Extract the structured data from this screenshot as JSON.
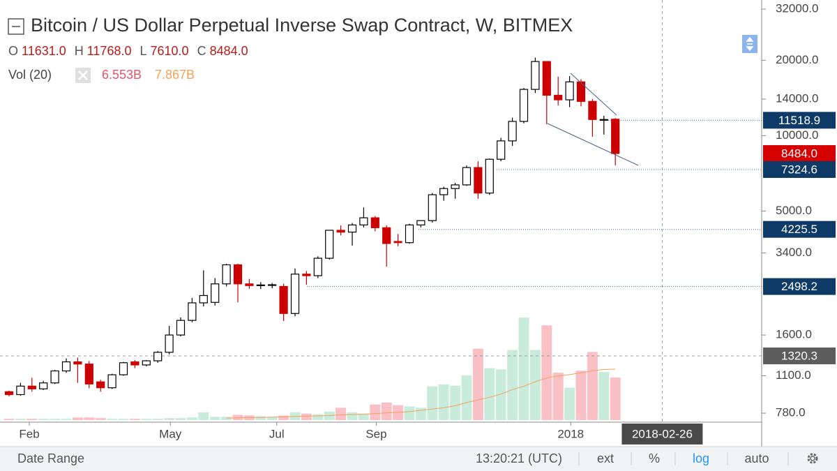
{
  "chart_data": {
    "type": "candlestick",
    "title": "Bitcoin / US Dollar Perpetual Inverse Swap Contract, W, BITMEX",
    "ohlc_legend": [
      {
        "key": "O",
        "value": "11631.0"
      },
      {
        "key": "H",
        "value": "11768.0"
      },
      {
        "key": "L",
        "value": "7610.0"
      },
      {
        "key": "C",
        "value": "8484.0"
      }
    ],
    "volume_legend": {
      "name": "Vol (20)",
      "value": "6.553B",
      "ma": "7.867B"
    },
    "log_scale": true,
    "ylim": [
      718,
      34800
    ],
    "yticks": [
      {
        "value": 32000,
        "label": "32000.0"
      },
      {
        "value": 20000,
        "label": "20000.0"
      },
      {
        "value": 14000,
        "label": "14000.0"
      },
      {
        "value": 10000,
        "label": "10000.0"
      },
      {
        "value": 5000,
        "label": "5000.0"
      },
      {
        "value": 3400,
        "label": "3400.0"
      },
      {
        "value": 1600,
        "label": "1600.0"
      },
      {
        "value": 1100,
        "label": "1100.0"
      },
      {
        "value": 780,
        "label": "780.0"
      }
    ],
    "xticks": [
      {
        "value": 1.77,
        "label": "Feb"
      },
      {
        "value": 14.1,
        "label": "May"
      },
      {
        "value": 23.4,
        "label": "Jul"
      },
      {
        "value": 32.1,
        "label": "Sep"
      },
      {
        "value": 49.1,
        "label": "2018"
      }
    ],
    "crosshair": {
      "x": {
        "value": 57.1,
        "label": "2018-02-26"
      },
      "y": 1320.3
    },
    "levels": [
      {
        "value": 11518.9,
        "color": "#0d3a66"
      },
      {
        "value": 8484,
        "label": "8484.0",
        "color": "#d50000"
      },
      {
        "value": 7324.6,
        "color": "#0d3a66"
      },
      {
        "value": 4225.5,
        "color": "#0d3a66"
      },
      {
        "value": 2498.2,
        "color": "#0d3a66"
      }
    ],
    "up_color": "#ffffff",
    "down_color": "#cc0000",
    "up_volume_color": "#c8ebdb",
    "down_volume_color": "#f9c0c6",
    "ma_color": "#f0a25a",
    "vol_lim": [
      0,
      30
    ],
    "candles": {
      "open": [
        950,
        925,
        1000,
        975,
        1030,
        1150,
        1250,
        1225,
        1040,
        985,
        1110,
        1250,
        1215,
        1262,
        1365,
        1600,
        1830,
        2150,
        2160,
        2560,
        3050,
        2560,
        2530,
        2525,
        2500,
        1950,
        2800,
        2760,
        3240,
        4190,
        4120,
        4400,
        4700,
        4290,
        3780,
        3740,
        4400,
        4580,
        5810,
        6150,
        6360,
        7460,
        5900,
        8050,
        9530,
        11400,
        15300,
        19770,
        14500,
        13900,
        16400,
        13700,
        11520,
        11631
      ],
      "high": [
        960,
        1030,
        1080,
        1050,
        1160,
        1290,
        1300,
        1260,
        1060,
        1120,
        1250,
        1270,
        1270,
        1380,
        1740,
        1880,
        2250,
        2900,
        2700,
        3080,
        3080,
        2680,
        2600,
        2580,
        2560,
        2950,
        2880,
        3300,
        4200,
        4380,
        4480,
        5170,
        4780,
        4380,
        4050,
        4450,
        4600,
        5900,
        6250,
        6480,
        7600,
        7900,
        8100,
        9800,
        11800,
        15500,
        20500,
        19800,
        17200,
        17300,
        16800,
        14000,
        12000,
        11768
      ],
      "low": [
        910,
        915,
        950,
        965,
        1020,
        1130,
        1030,
        980,
        950,
        975,
        1100,
        1180,
        1200,
        1240,
        1340,
        1580,
        1800,
        2080,
        2100,
        2500,
        2160,
        2450,
        2440,
        2460,
        1820,
        1900,
        2540,
        2700,
        3200,
        4000,
        3640,
        4300,
        4150,
        3000,
        3620,
        3700,
        4300,
        4500,
        5500,
        5600,
        6300,
        5600,
        5800,
        7900,
        9100,
        11200,
        14800,
        11100,
        13200,
        13000,
        13100,
        9900,
        10100,
        7610
      ],
      "close": [
        925,
        1000,
        975,
        1030,
        1150,
        1250,
        1225,
        1020,
        985,
        1110,
        1240,
        1215,
        1262,
        1365,
        1600,
        1830,
        2150,
        2300,
        2560,
        3050,
        2560,
        2520,
        2535,
        2540,
        1950,
        2800,
        2760,
        3240,
        4190,
        4120,
        4400,
        4700,
        4290,
        3710,
        3740,
        4400,
        4580,
        5810,
        6150,
        6360,
        7460,
        5900,
        8050,
        9530,
        11400,
        15300,
        19770,
        14500,
        13900,
        16400,
        13700,
        11600,
        11600,
        8484
      ]
    },
    "volume": [
      0.2,
      0.2,
      0.2,
      0.2,
      0.2,
      0.2,
      0.4,
      0.4,
      0.3,
      0.2,
      0.2,
      0.2,
      0.2,
      0.2,
      0.3,
      0.3,
      0.4,
      1.2,
      0.5,
      0.5,
      0.8,
      0.7,
      0.6,
      0.5,
      0.7,
      1.2,
      1.0,
      0.9,
      1.3,
      1.9,
      1.2,
      1.0,
      2.4,
      2.7,
      2.3,
      2.1,
      1.9,
      5.2,
      5.5,
      5.3,
      6.9,
      11.0,
      8.0,
      7.8,
      10.8,
      15.8,
      10.8,
      14.6,
      7.3,
      5.0,
      7.6,
      10.5,
      7.4,
      6.553
    ],
    "volume_ma": [
      null,
      null,
      null,
      null,
      null,
      null,
      null,
      null,
      null,
      null,
      null,
      null,
      null,
      null,
      null,
      null,
      null,
      null,
      null,
      0.3,
      0.35,
      0.4,
      0.4,
      0.45,
      0.5,
      0.55,
      0.6,
      0.65,
      0.7,
      0.8,
      0.85,
      0.9,
      1.0,
      1.1,
      1.2,
      1.3,
      1.5,
      1.7,
      1.9,
      2.2,
      2.7,
      3.1,
      3.5,
      4.0,
      4.7,
      5.2,
      5.9,
      6.5,
      6.8,
      7.0,
      7.3,
      7.6,
      7.8,
      7.867
    ],
    "toolbar": [
      "Date Range",
      "13:20:21 (UTC)",
      "ext",
      "%",
      "log",
      "auto"
    ]
  }
}
